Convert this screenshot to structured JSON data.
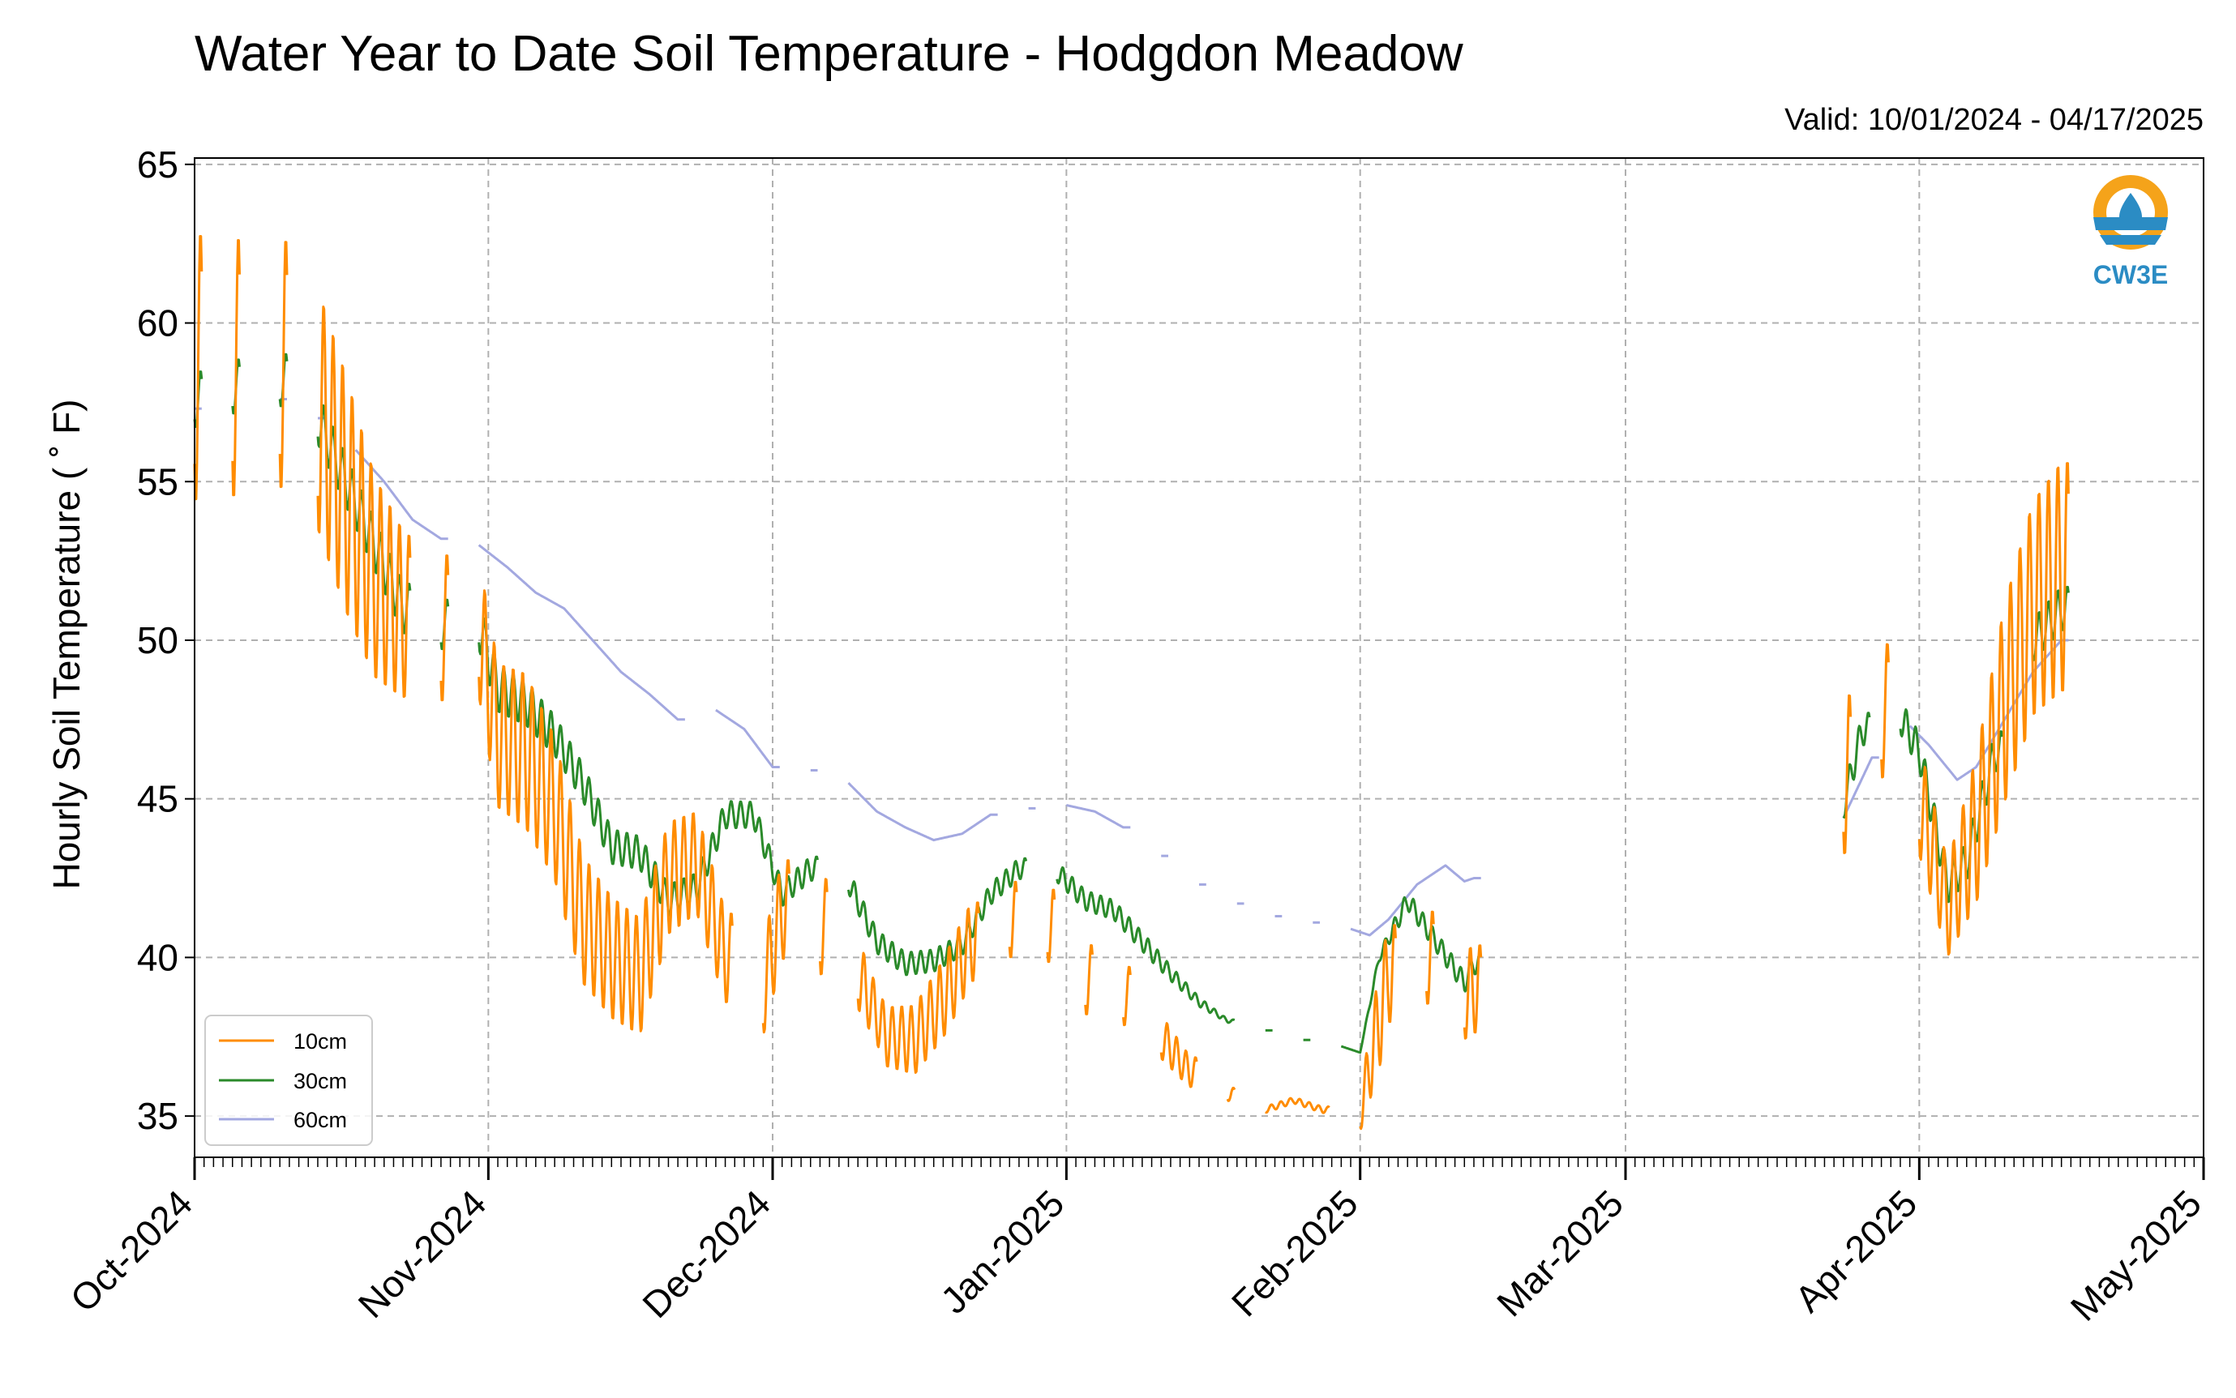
{
  "chart_data": {
    "type": "line",
    "title": "Water Year to Date Soil Temperature - Hodgdon Meadow",
    "subtitle": "Valid: 10/01/2024 - 04/17/2025",
    "xlabel": "",
    "ylabel": "Hourly Soil Temperature ( ˚ F)",
    "ylim": [
      33.7,
      65.2
    ],
    "xlim": [
      "2024-10-01",
      "2025-05-01"
    ],
    "y_ticks": [
      "35",
      "40",
      "45",
      "50",
      "55",
      "60",
      "65"
    ],
    "x_ticks": [
      "Oct-2024",
      "Nov-2024",
      "Dec-2024",
      "Jan-2025",
      "Feb-2025",
      "Mar-2025",
      "Apr-2025",
      "May-2025"
    ],
    "grid": true,
    "legend_position": "lower-left",
    "logo_text": "CW3E",
    "series": [
      {
        "name": "10cm",
        "color": "#ff8c00",
        "daily_mean": [
          {
            "x": "2024-10-01",
            "y": 58.6
          },
          {
            "x": "2024-10-05",
            "y": 58.6
          },
          {
            "x": "2024-10-10",
            "y": 58.7
          },
          {
            "x": "2024-10-14",
            "y": 57.3
          },
          {
            "x": "2024-10-17",
            "y": 54.6
          },
          {
            "x": "2024-10-20",
            "y": 52.0
          },
          {
            "x": "2024-10-23",
            "y": 50.8
          },
          {
            "x": "2024-10-27",
            "y": 50.4
          },
          {
            "x": "2024-10-31",
            "y": 50.4
          },
          {
            "x": "2024-11-02",
            "y": 47.0
          },
          {
            "x": "2024-11-05",
            "y": 46.5
          },
          {
            "x": "2024-11-08",
            "y": 44.7
          },
          {
            "x": "2024-11-11",
            "y": 41.2
          },
          {
            "x": "2024-11-14",
            "y": 40.0
          },
          {
            "x": "2024-11-17",
            "y": 39.4
          },
          {
            "x": "2024-11-20",
            "y": 42.5
          },
          {
            "x": "2024-11-23",
            "y": 43.0
          },
          {
            "x": "2024-11-26",
            "y": 40.0
          },
          {
            "x": "2024-11-30",
            "y": 39.0
          },
          {
            "x": "2024-12-02",
            "y": 41.5
          },
          {
            "x": "2024-12-06",
            "y": 41.0
          },
          {
            "x": "2024-12-10",
            "y": 39.5
          },
          {
            "x": "2024-12-13",
            "y": 37.5
          },
          {
            "x": "2024-12-16",
            "y": 37.4
          },
          {
            "x": "2024-12-19",
            "y": 38.7
          },
          {
            "x": "2024-12-22",
            "y": 40.5
          },
          {
            "x": "2024-12-26",
            "y": 41.2
          },
          {
            "x": "2024-12-30",
            "y": 41.0
          },
          {
            "x": "2025-01-03",
            "y": 39.3
          },
          {
            "x": "2025-01-07",
            "y": 38.8
          },
          {
            "x": "2025-01-11",
            "y": 37.5
          },
          {
            "x": "2025-01-14",
            "y": 36.4
          },
          {
            "x": "2025-01-18",
            "y": 35.7
          },
          {
            "x": "2025-01-22",
            "y": 35.2
          },
          {
            "x": "2025-01-25",
            "y": 35.5
          },
          {
            "x": "2025-01-28",
            "y": 35.2
          },
          {
            "x": "2025-02-01",
            "y": 35.1
          },
          {
            "x": "2025-02-04",
            "y": 39.5
          },
          {
            "x": "2025-02-08",
            "y": 40.0
          },
          {
            "x": "2025-02-12",
            "y": 38.8
          },
          {
            "x": "2025-02-13",
            "y": 39.0
          },
          {
            "x": "2025-03-24",
            "y": 45.8
          },
          {
            "x": "2025-03-28",
            "y": 47.8
          },
          {
            "x": "2025-04-01",
            "y": 45.0
          },
          {
            "x": "2025-04-04",
            "y": 41.5
          },
          {
            "x": "2025-04-07",
            "y": 44.0
          },
          {
            "x": "2025-04-10",
            "y": 48.0
          },
          {
            "x": "2025-04-13",
            "y": 51.0
          },
          {
            "x": "2025-04-16",
            "y": 52.0
          }
        ],
        "daily_amplitude": [
          {
            "x": "2024-10-01",
            "y": 4.3
          },
          {
            "x": "2024-10-10",
            "y": 4.0
          },
          {
            "x": "2024-10-17",
            "y": 3.8
          },
          {
            "x": "2024-10-24",
            "y": 2.5
          },
          {
            "x": "2024-10-31",
            "y": 2.2
          },
          {
            "x": "2024-11-05",
            "y": 2.5
          },
          {
            "x": "2024-11-12",
            "y": 2.0
          },
          {
            "x": "2024-11-20",
            "y": 1.8
          },
          {
            "x": "2024-11-27",
            "y": 1.4
          },
          {
            "x": "2024-12-05",
            "y": 1.7
          },
          {
            "x": "2024-12-12",
            "y": 0.9
          },
          {
            "x": "2024-12-20",
            "y": 1.3
          },
          {
            "x": "2024-12-28",
            "y": 1.2
          },
          {
            "x": "2025-01-05",
            "y": 1.1
          },
          {
            "x": "2025-01-14",
            "y": 0.5
          },
          {
            "x": "2025-01-20",
            "y": 0.1
          },
          {
            "x": "2025-01-31",
            "y": 0.1
          },
          {
            "x": "2025-02-03",
            "y": 1.6
          },
          {
            "x": "2025-02-13",
            "y": 1.4
          },
          {
            "x": "2025-03-24",
            "y": 2.6
          },
          {
            "x": "2025-04-04",
            "y": 1.5
          },
          {
            "x": "2025-04-10",
            "y": 3.2
          },
          {
            "x": "2025-04-16",
            "y": 3.7
          }
        ]
      },
      {
        "name": "30cm",
        "color": "#2a8a2a",
        "daily_mean": [
          {
            "x": "2024-10-01",
            "y": 57.6
          },
          {
            "x": "2024-10-05",
            "y": 58.0
          },
          {
            "x": "2024-10-10",
            "y": 58.2
          },
          {
            "x": "2024-10-14",
            "y": 57.0
          },
          {
            "x": "2024-10-17",
            "y": 55.0
          },
          {
            "x": "2024-10-20",
            "y": 53.0
          },
          {
            "x": "2024-10-23",
            "y": 51.0
          },
          {
            "x": "2024-10-27",
            "y": 50.5
          },
          {
            "x": "2024-10-31",
            "y": 50.5
          },
          {
            "x": "2024-11-02",
            "y": 48.5
          },
          {
            "x": "2024-11-05",
            "y": 48.0
          },
          {
            "x": "2024-11-08",
            "y": 47.0
          },
          {
            "x": "2024-11-11",
            "y": 45.5
          },
          {
            "x": "2024-11-14",
            "y": 43.5
          },
          {
            "x": "2024-11-17",
            "y": 43.3
          },
          {
            "x": "2024-11-20",
            "y": 41.8
          },
          {
            "x": "2024-11-23",
            "y": 42.2
          },
          {
            "x": "2024-11-26",
            "y": 44.5
          },
          {
            "x": "2024-11-29",
            "y": 44.5
          },
          {
            "x": "2024-12-02",
            "y": 42.0
          },
          {
            "x": "2024-12-05",
            "y": 42.8
          },
          {
            "x": "2024-12-09",
            "y": 42.4
          },
          {
            "x": "2024-12-12",
            "y": 40.5
          },
          {
            "x": "2024-12-15",
            "y": 39.8
          },
          {
            "x": "2024-12-18",
            "y": 39.9
          },
          {
            "x": "2024-12-21",
            "y": 40.4
          },
          {
            "x": "2024-12-24",
            "y": 42.0
          },
          {
            "x": "2024-12-27",
            "y": 42.8
          },
          {
            "x": "2024-12-31",
            "y": 42.7
          },
          {
            "x": "2025-01-03",
            "y": 41.8
          },
          {
            "x": "2025-01-06",
            "y": 41.5
          },
          {
            "x": "2025-01-09",
            "y": 40.5
          },
          {
            "x": "2025-01-12",
            "y": 39.5
          },
          {
            "x": "2025-01-15",
            "y": 38.6
          },
          {
            "x": "2025-01-18",
            "y": 38.0
          },
          {
            "x": "2025-01-22",
            "y": 37.7
          },
          {
            "x": "2025-01-26",
            "y": 37.4
          },
          {
            "x": "2025-01-30",
            "y": 37.2
          },
          {
            "x": "2025-02-01",
            "y": 37.0
          },
          {
            "x": "2025-02-03",
            "y": 40.0
          },
          {
            "x": "2025-02-06",
            "y": 41.8
          },
          {
            "x": "2025-02-09",
            "y": 40.5
          },
          {
            "x": "2025-02-12",
            "y": 39.2
          },
          {
            "x": "2025-02-13",
            "y": 39.8
          },
          {
            "x": "2025-03-24",
            "y": 44.8
          },
          {
            "x": "2025-03-26",
            "y": 47.2
          },
          {
            "x": "2025-03-30",
            "y": 47.6
          },
          {
            "x": "2025-04-01",
            "y": 46.5
          },
          {
            "x": "2025-04-04",
            "y": 42.3
          },
          {
            "x": "2025-04-06",
            "y": 43.0
          },
          {
            "x": "2025-04-09",
            "y": 46.5
          },
          {
            "x": "2025-04-13",
            "y": 50.0
          },
          {
            "x": "2025-04-16",
            "y": 51.0
          }
        ],
        "daily_amplitude": [
          {
            "x": "2024-10-01",
            "y": 0.9
          },
          {
            "x": "2024-10-17",
            "y": 0.8
          },
          {
            "x": "2024-10-31",
            "y": 0.8
          },
          {
            "x": "2024-11-10",
            "y": 0.6
          },
          {
            "x": "2024-11-30",
            "y": 0.4
          },
          {
            "x": "2025-01-10",
            "y": 0.3
          },
          {
            "x": "2025-01-20",
            "y": 0.0
          },
          {
            "x": "2025-02-01",
            "y": 0.0
          },
          {
            "x": "2025-02-05",
            "y": 0.3
          },
          {
            "x": "2025-03-24",
            "y": 0.5
          },
          {
            "x": "2025-04-16",
            "y": 0.7
          }
        ]
      },
      {
        "name": "60cm",
        "color": "#a3a8e0",
        "daily_mean": [
          {
            "x": "2024-10-01",
            "y": 57.3
          },
          {
            "x": "2024-10-10",
            "y": 57.6
          },
          {
            "x": "2024-10-14",
            "y": 57.0
          },
          {
            "x": "2024-10-18",
            "y": 56.0
          },
          {
            "x": "2024-10-21",
            "y": 55.0
          },
          {
            "x": "2024-10-24",
            "y": 53.8
          },
          {
            "x": "2024-10-27",
            "y": 53.2
          },
          {
            "x": "2024-10-31",
            "y": 53.0
          },
          {
            "x": "2024-11-03",
            "y": 52.3
          },
          {
            "x": "2024-11-06",
            "y": 51.5
          },
          {
            "x": "2024-11-09",
            "y": 51.0
          },
          {
            "x": "2024-11-12",
            "y": 50.0
          },
          {
            "x": "2024-11-15",
            "y": 49.0
          },
          {
            "x": "2024-11-18",
            "y": 48.3
          },
          {
            "x": "2024-11-21",
            "y": 47.5
          },
          {
            "x": "2024-11-25",
            "y": 47.8
          },
          {
            "x": "2024-11-28",
            "y": 47.2
          },
          {
            "x": "2024-12-01",
            "y": 46.0
          },
          {
            "x": "2024-12-05",
            "y": 45.9
          },
          {
            "x": "2024-12-09",
            "y": 45.5
          },
          {
            "x": "2024-12-12",
            "y": 44.6
          },
          {
            "x": "2024-12-15",
            "y": 44.1
          },
          {
            "x": "2024-12-18",
            "y": 43.7
          },
          {
            "x": "2024-12-21",
            "y": 43.9
          },
          {
            "x": "2024-12-24",
            "y": 44.5
          },
          {
            "x": "2024-12-28",
            "y": 44.7
          },
          {
            "x": "2025-01-01",
            "y": 44.8
          },
          {
            "x": "2025-01-04",
            "y": 44.6
          },
          {
            "x": "2025-01-07",
            "y": 44.1
          },
          {
            "x": "2025-01-11",
            "y": 43.2
          },
          {
            "x": "2025-01-15",
            "y": 42.3
          },
          {
            "x": "2025-01-19",
            "y": 41.7
          },
          {
            "x": "2025-01-23",
            "y": 41.3
          },
          {
            "x": "2025-01-27",
            "y": 41.1
          },
          {
            "x": "2025-01-31",
            "y": 40.9
          },
          {
            "x": "2025-02-02",
            "y": 40.7
          },
          {
            "x": "2025-02-04",
            "y": 41.2
          },
          {
            "x": "2025-02-07",
            "y": 42.3
          },
          {
            "x": "2025-02-10",
            "y": 42.9
          },
          {
            "x": "2025-02-12",
            "y": 42.4
          },
          {
            "x": "2025-02-13",
            "y": 42.5
          },
          {
            "x": "2025-03-24",
            "y": 44.4
          },
          {
            "x": "2025-03-27",
            "y": 46.3
          },
          {
            "x": "2025-03-31",
            "y": 47.3
          },
          {
            "x": "2025-04-02",
            "y": 46.7
          },
          {
            "x": "2025-04-05",
            "y": 45.6
          },
          {
            "x": "2025-04-07",
            "y": 46.0
          },
          {
            "x": "2025-04-10",
            "y": 47.5
          },
          {
            "x": "2025-04-13",
            "y": 49.0
          },
          {
            "x": "2025-04-16",
            "y": 50.0
          }
        ]
      }
    ]
  }
}
